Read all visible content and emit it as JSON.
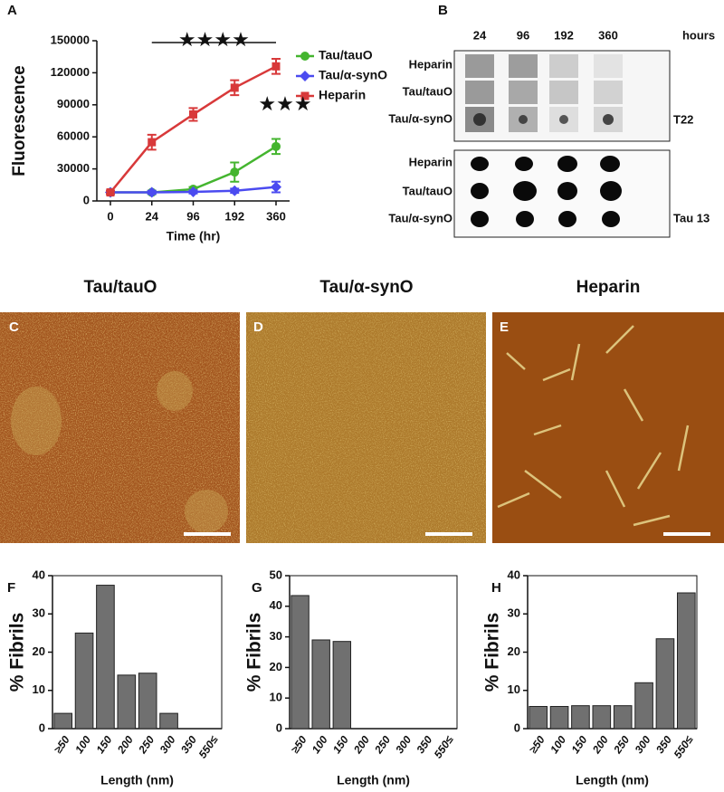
{
  "chart_data": [
    {
      "type": "line",
      "panel": "A",
      "ylabel": "Fluorescence",
      "xlabel": "Time (hr)",
      "categories": [
        "0",
        "24",
        "96",
        "192",
        "360"
      ],
      "series": [
        {
          "name": "Tau/tauO",
          "color": "#44b52f",
          "marker": "circle",
          "values": [
            8000,
            8000,
            11000,
            27000,
            51000
          ],
          "errors": [
            1500,
            1500,
            2000,
            9000,
            7000
          ]
        },
        {
          "name": "Tau/α-synO",
          "color": "#4b4bf0",
          "marker": "diamond",
          "values": [
            8000,
            8000,
            8500,
            9500,
            13000
          ],
          "errors": [
            1500,
            1500,
            1500,
            2000,
            5000
          ]
        },
        {
          "name": "Heparin",
          "color": "#d8393a",
          "marker": "square",
          "values": [
            8000,
            55000,
            81000,
            106000,
            126000
          ],
          "errors": [
            1500,
            7000,
            6000,
            7000,
            7000
          ]
        }
      ],
      "annotations": [
        "★★★★",
        "★★★"
      ],
      "ylim": [
        0,
        150000
      ],
      "yticks": [
        0,
        30000,
        60000,
        90000,
        120000,
        150000
      ]
    },
    {
      "type": "bar",
      "panel": "F",
      "ylabel": "% Fibrils",
      "xlabel": "Length (nm)",
      "color": "#707070",
      "categories": [
        "≥50",
        "100",
        "150",
        "200",
        "250",
        "300",
        "350",
        "550≤"
      ],
      "values": [
        4,
        25,
        37.5,
        14,
        14.5,
        4,
        0,
        0
      ],
      "ylim": [
        0,
        40
      ],
      "yticks": [
        0,
        10,
        20,
        30,
        40
      ]
    },
    {
      "type": "bar",
      "panel": "G",
      "ylabel": "% Fibrils",
      "xlabel": "Length (nm)",
      "color": "#707070",
      "categories": [
        "≥50",
        "100",
        "150",
        "200",
        "250",
        "300",
        "350",
        "550≤"
      ],
      "values": [
        43.5,
        29,
        28.5,
        0,
        0,
        0,
        0,
        0
      ],
      "ylim": [
        0,
        50
      ],
      "yticks": [
        0,
        10,
        20,
        30,
        40,
        50
      ]
    },
    {
      "type": "bar",
      "panel": "H",
      "ylabel": "% Fibrils",
      "xlabel": "Length (nm)",
      "color": "#707070",
      "categories": [
        "≥50",
        "100",
        "150",
        "200",
        "250",
        "300",
        "350",
        "550≤"
      ],
      "values": [
        5.8,
        5.8,
        6,
        6,
        6,
        12,
        23.5,
        35.5
      ],
      "ylim": [
        0,
        40
      ],
      "yticks": [
        0,
        10,
        20,
        30,
        40
      ]
    }
  ],
  "blot": {
    "panel": "B",
    "columns": [
      "24",
      "96",
      "192",
      "360"
    ],
    "unit": "hours",
    "rows": [
      "Heparin",
      "Tau/tauO",
      "Tau/α-synO"
    ],
    "antibodies": [
      "T22",
      "Tau 13"
    ]
  },
  "images": [
    {
      "panel": "C",
      "title": "Tau/tauO"
    },
    {
      "panel": "D",
      "title": "Tau/α-synO"
    },
    {
      "panel": "E",
      "title": "Heparin"
    }
  ]
}
